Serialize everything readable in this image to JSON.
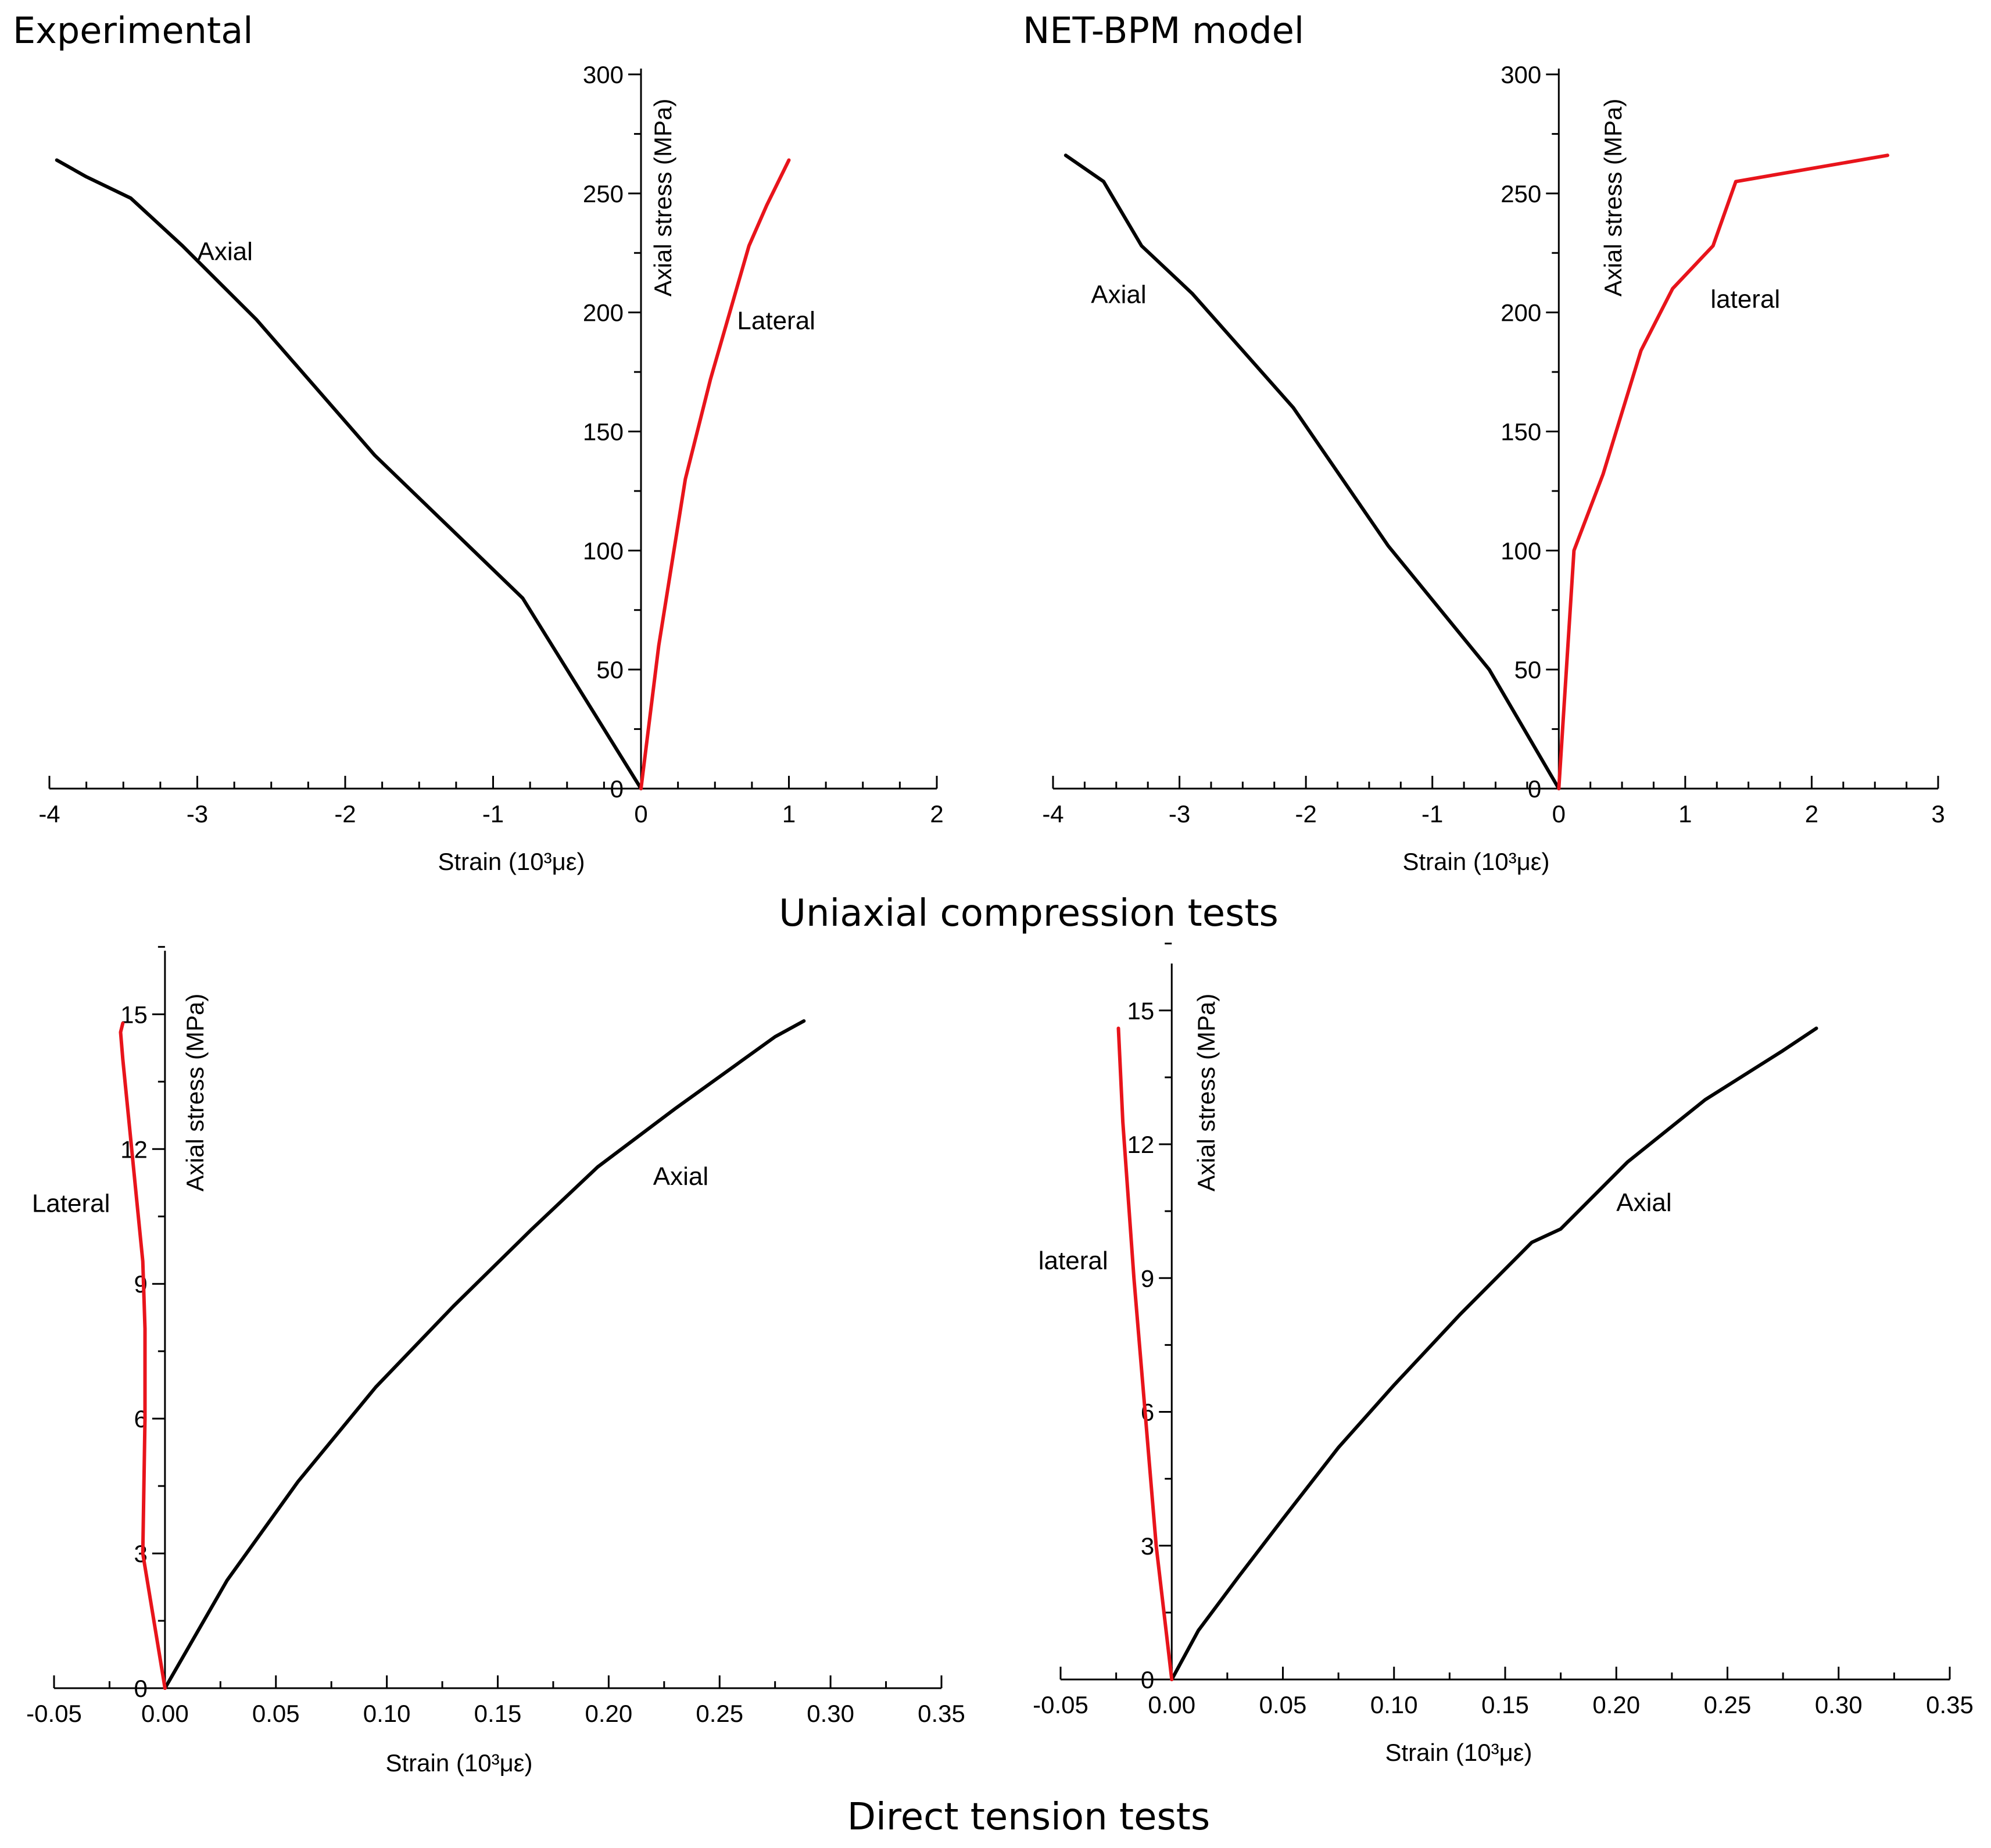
{
  "page": {
    "header_left": "Experimental",
    "header_right": "NET-BPM model",
    "middle_title": "Uniaxial compression tests",
    "bottom_title": "Direct tension tests"
  },
  "colors": {
    "axial": "#000000",
    "lateral": "#e8141b",
    "axis": "#000000"
  },
  "chart_data": [
    {
      "id": "exp-compression",
      "type": "line",
      "xlabel": "Strain (10³με)",
      "ylabel": "Axial stress (MPa)",
      "xlim": [
        -4,
        2
      ],
      "ylim": [
        0,
        300
      ],
      "xticks": [
        -4,
        -3,
        -2,
        -1,
        0,
        1,
        2
      ],
      "xtick_labels": [
        "-4",
        "-3",
        "-2",
        "-1",
        "0",
        "1",
        "2"
      ],
      "yticks": [
        0,
        50,
        100,
        150,
        200,
        250,
        300
      ],
      "ytick_labels": [
        "0",
        "50",
        "100",
        "150",
        "200",
        "250",
        "300"
      ],
      "x_minor": 0.25,
      "y_minor": 25,
      "y_axis_at_x": 0,
      "series": [
        {
          "name": "Axial",
          "color": "#000000",
          "x": [
            0,
            -0.8,
            -1.8,
            -2.6,
            -3.1,
            -3.45,
            -3.75,
            -3.95
          ],
          "y": [
            0,
            80,
            140,
            197,
            228,
            248,
            257,
            264
          ]
        },
        {
          "name": "Lateral",
          "color": "#e8141b",
          "x": [
            0,
            0.12,
            0.3,
            0.47,
            0.6,
            0.73,
            0.85,
            1.0
          ],
          "y": [
            0,
            60,
            130,
            172,
            200,
            228,
            245,
            264
          ]
        }
      ],
      "annotations": [
        {
          "text": "Axial",
          "x": -3.0,
          "y": 222
        },
        {
          "text": "Lateral",
          "x": 0.65,
          "y": 193
        }
      ]
    },
    {
      "id": "net-compression",
      "type": "line",
      "xlabel": "Strain (10³με)",
      "ylabel": "Axial stress (MPa)",
      "xlim": [
        -4,
        3
      ],
      "ylim": [
        0,
        300
      ],
      "xticks": [
        -4,
        -3,
        -2,
        -1,
        0,
        1,
        2,
        3
      ],
      "xtick_labels": [
        "-4",
        "-3",
        "-2",
        "-1",
        "0",
        "1",
        "2",
        "3"
      ],
      "yticks": [
        0,
        50,
        100,
        150,
        200,
        250,
        300
      ],
      "ytick_labels": [
        "0",
        "50",
        "100",
        "150",
        "200",
        "250",
        "300"
      ],
      "x_minor": 0.25,
      "y_minor": 25,
      "y_axis_at_x": 0,
      "series": [
        {
          "name": "Axial",
          "color": "#000000",
          "x": [
            0,
            -0.55,
            -1.35,
            -2.1,
            -2.9,
            -3.3,
            -3.6,
            -3.9
          ],
          "y": [
            0,
            50,
            102,
            160,
            208,
            228,
            255,
            266
          ]
        },
        {
          "name": "lateral",
          "color": "#e8141b",
          "x": [
            0,
            0.12,
            0.35,
            0.65,
            0.9,
            1.22,
            1.4,
            2.6
          ],
          "y": [
            0,
            100,
            132,
            184,
            210,
            228,
            255,
            266
          ]
        }
      ],
      "annotations": [
        {
          "text": "Axial",
          "x": -3.7,
          "y": 204
        },
        {
          "text": "lateral",
          "x": 1.2,
          "y": 202
        }
      ]
    },
    {
      "id": "exp-tension",
      "type": "line",
      "xlabel": "Strain (10³με)",
      "ylabel": "Axial stress (MPa)",
      "xlim": [
        -0.05,
        0.35
      ],
      "ylim": [
        0,
        16
      ],
      "xticks": [
        -0.05,
        0,
        0.05,
        0.1,
        0.15,
        0.2,
        0.25,
        0.3,
        0.35
      ],
      "xtick_labels": [
        "-0.05",
        "0.00",
        "0.05",
        "0.10",
        "0.15",
        "0.20",
        "0.25",
        "0.30",
        "0.35"
      ],
      "yticks": [
        0,
        3,
        6,
        9,
        12,
        15
      ],
      "ytick_labels": [
        "0",
        "3",
        "6",
        "9",
        "12",
        "15"
      ],
      "x_minor": 0.025,
      "y_minor": 1.5,
      "y_axis_at_x": 0,
      "series": [
        {
          "name": "Axial",
          "color": "#000000",
          "x": [
            0,
            0.028,
            0.06,
            0.095,
            0.13,
            0.165,
            0.195,
            0.23,
            0.275,
            0.288
          ],
          "y": [
            0,
            2.4,
            4.6,
            6.7,
            8.5,
            10.2,
            11.6,
            12.9,
            14.5,
            14.85
          ]
        },
        {
          "name": "Lateral",
          "color": "#e8141b",
          "x": [
            0,
            -0.01,
            -0.009,
            -0.009,
            -0.01,
            -0.013,
            -0.016,
            -0.019,
            -0.02,
            -0.019
          ],
          "y": [
            0,
            3.0,
            6.0,
            8.0,
            9.5,
            11.0,
            12.5,
            14.0,
            14.6,
            14.8
          ]
        }
      ],
      "annotations": [
        {
          "text": "Axial",
          "x": 0.22,
          "y": 11.2
        },
        {
          "text": "Lateral",
          "x": -0.06,
          "y": 10.6
        }
      ]
    },
    {
      "id": "net-tension",
      "type": "line",
      "xlabel": "Strain (10³με)",
      "ylabel": "Axial stress (MPa)",
      "xlim": [
        -0.05,
        0.35
      ],
      "ylim": [
        0,
        16
      ],
      "xticks": [
        -0.05,
        0,
        0.05,
        0.1,
        0.15,
        0.2,
        0.25,
        0.3,
        0.35
      ],
      "xtick_labels": [
        "-0.05",
        "0.00",
        "0.05",
        "0.10",
        "0.15",
        "0.20",
        "0.25",
        "0.30",
        "0.35"
      ],
      "yticks": [
        0,
        3,
        6,
        9,
        12,
        15
      ],
      "ytick_labels": [
        "0",
        "3",
        "6",
        "9",
        "12",
        "15"
      ],
      "x_minor": 0.025,
      "y_minor": 1.5,
      "y_axis_at_x": 0,
      "series": [
        {
          "name": "Axial",
          "color": "#000000",
          "x": [
            0,
            0.012,
            0.03,
            0.05,
            0.075,
            0.1,
            0.13,
            0.162,
            0.175,
            0.205,
            0.24,
            0.275,
            0.29
          ],
          "y": [
            0,
            1.1,
            2.3,
            3.6,
            5.2,
            6.6,
            8.2,
            9.8,
            10.1,
            11.6,
            13.0,
            14.1,
            14.6
          ]
        },
        {
          "name": "lateral",
          "color": "#e8141b",
          "x": [
            0,
            -0.007,
            -0.012,
            -0.017,
            -0.022,
            -0.024
          ],
          "y": [
            0,
            3.0,
            6.0,
            9.0,
            12.5,
            14.6
          ]
        }
      ],
      "annotations": [
        {
          "text": "Axial",
          "x": 0.2,
          "y": 10.5
        },
        {
          "text": "lateral",
          "x": -0.06,
          "y": 9.2
        }
      ]
    }
  ]
}
